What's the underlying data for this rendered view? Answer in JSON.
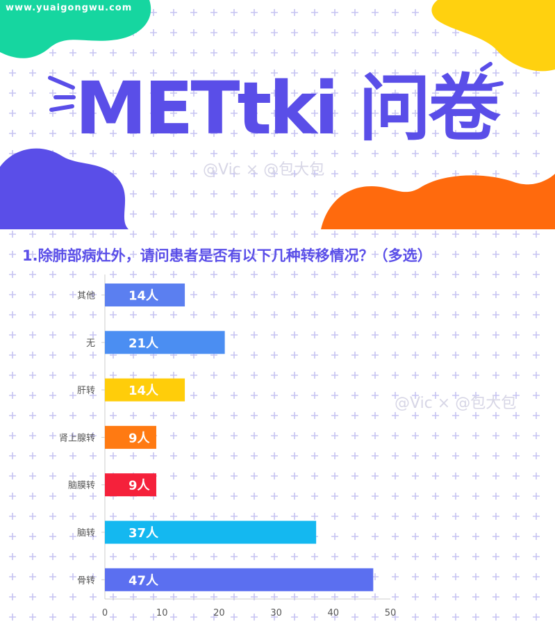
{
  "page": {
    "watermark": "www.yuaigongwu.com",
    "title": "METtki 问卷",
    "credit": "@Vic × @包大包"
  },
  "chart_data": {
    "type": "bar",
    "orientation": "horizontal",
    "title": "1.除肺部病灶外，请问患者是否有以下几种转移情况？（多选）",
    "xlabel": "",
    "ylabel": "",
    "xlim": [
      0,
      50
    ],
    "xticks": [
      0,
      10,
      20,
      30,
      40,
      50
    ],
    "grid": false,
    "categories": [
      "其他",
      "无",
      "肝转",
      "肾上腺转",
      "脑膜转",
      "脑转",
      "骨转"
    ],
    "values": [
      14,
      21,
      14,
      9,
      9,
      37,
      47
    ],
    "value_labels": [
      "14人",
      "21人",
      "14人",
      "9人",
      "9人",
      "37人",
      "47人"
    ],
    "colors": [
      "#5b7ff0",
      "#4b8ef2",
      "#ffcd0a",
      "#ff7a12",
      "#f5213b",
      "#14b8f0",
      "#5b6ff0"
    ]
  }
}
